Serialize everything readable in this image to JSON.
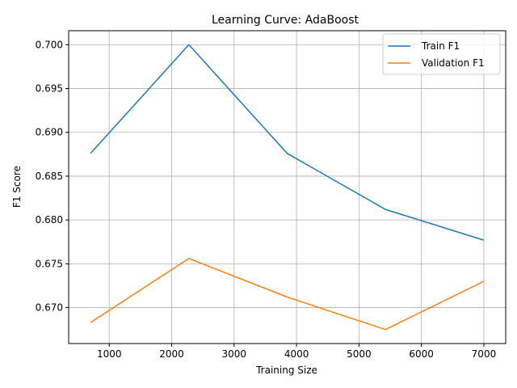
{
  "chart_data": {
    "type": "line",
    "title": "Learning Curve: AdaBoost",
    "xlabel": "Training Size",
    "ylabel": "F1 Score",
    "xlim": [
      350,
      7350
    ],
    "ylim": [
      0.6659,
      0.7016
    ],
    "xticks": [
      1000,
      2000,
      3000,
      4000,
      5000,
      6000,
      7000
    ],
    "xtick_labels": [
      "1000",
      "2000",
      "3000",
      "4000",
      "5000",
      "6000",
      "7000"
    ],
    "yticks": [
      0.67,
      0.675,
      0.68,
      0.685,
      0.69,
      0.695,
      0.7
    ],
    "ytick_labels": [
      "0.670",
      "0.675",
      "0.680",
      "0.685",
      "0.690",
      "0.695",
      "0.700"
    ],
    "grid": true,
    "legend_position": "top-right",
    "x": [
      700,
      2275,
      3850,
      5425,
      7000
    ],
    "series": [
      {
        "name": "Train F1",
        "color": "#1f77b4",
        "values": [
          0.6876,
          0.7,
          0.6876,
          0.6812,
          0.6777
        ]
      },
      {
        "name": "Validation F1",
        "color": "#ff7f0e",
        "values": [
          0.6683,
          0.6756,
          0.6712,
          0.6675,
          0.673
        ]
      }
    ]
  }
}
